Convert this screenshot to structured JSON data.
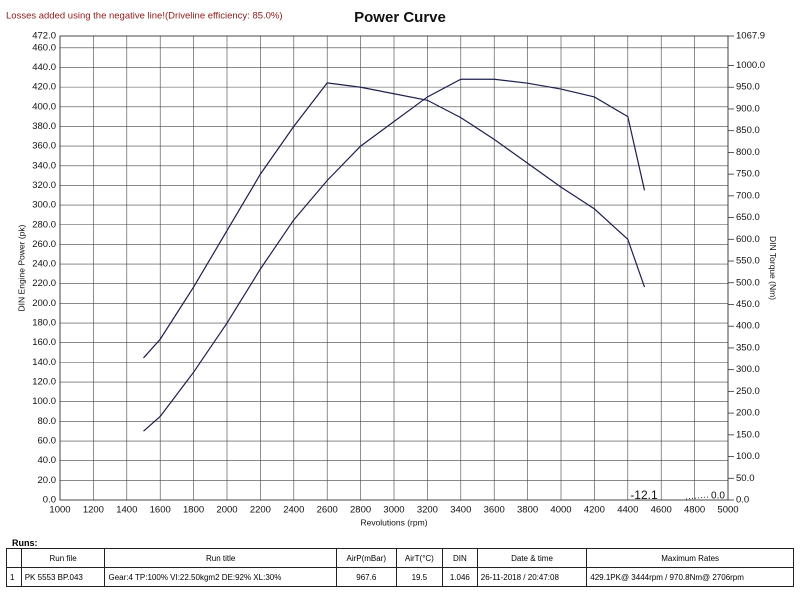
{
  "chart_data": {
    "type": "line",
    "note": "Losses added using the negative line!(Driveline efficiency: 85.0%)",
    "title": "Power Curve",
    "x_label": "Revolutions (rpm)",
    "y_label": "DIN Engine Power (pk)",
    "y2_label": "DIN Torque (Nm)",
    "annotations": [
      "-12.1",
      "0.0"
    ],
    "x": [
      1500,
      1600,
      1800,
      2000,
      2200,
      2400,
      2600,
      2800,
      3000,
      3200,
      3400,
      3600,
      3800,
      4000,
      4200,
      4400,
      4500
    ],
    "series": [
      {
        "name": "DIN Engine Power",
        "color": "#1c1f4e",
        "values": [
          70,
          85,
          130,
          180,
          235,
          285,
          325,
          360,
          385,
          410,
          428,
          428,
          424,
          418,
          410,
          390,
          315
        ]
      },
      {
        "name": "DIN Torque",
        "color": "#1c1f4e",
        "axis": "y2",
        "values": [
          327,
          370,
          490,
          620,
          750,
          860,
          960,
          950,
          935,
          920,
          880,
          830,
          775,
          720,
          670,
          600,
          490
        ]
      }
    ],
    "xlim": [
      1000,
      5000
    ],
    "xticks": [
      1000,
      1200,
      1400,
      1600,
      1800,
      2000,
      2200,
      2400,
      2600,
      2800,
      3000,
      3200,
      3400,
      3600,
      3800,
      4000,
      4200,
      4400,
      4600,
      4800,
      5000
    ],
    "ylim": [
      0,
      472
    ],
    "yticks": [
      {
        "value": 0,
        "label": "0.0"
      },
      {
        "value": 20,
        "label": "20.0"
      },
      {
        "value": 40,
        "label": "40.0"
      },
      {
        "value": 60,
        "label": "60.0"
      },
      {
        "value": 80,
        "label": "80.0"
      },
      {
        "value": 100,
        "label": "100.0"
      },
      {
        "value": 120,
        "label": "120.0"
      },
      {
        "value": 140,
        "label": "140.0"
      },
      {
        "value": 160,
        "label": "160.0"
      },
      {
        "value": 180,
        "label": "180.0"
      },
      {
        "value": 200,
        "label": "200.0"
      },
      {
        "value": 220,
        "label": "220.0"
      },
      {
        "value": 240,
        "label": "240.0"
      },
      {
        "value": 260,
        "label": "260.0"
      },
      {
        "value": 280,
        "label": "280.0"
      },
      {
        "value": 300,
        "label": "300.0"
      },
      {
        "value": 320,
        "label": "320.0"
      },
      {
        "value": 340,
        "label": "340.0"
      },
      {
        "value": 360,
        "label": "360.0"
      },
      {
        "value": 380,
        "label": "380.0"
      },
      {
        "value": 400,
        "label": "400.0"
      },
      {
        "value": 420,
        "label": "420.0"
      },
      {
        "value": 440,
        "label": "440.0"
      },
      {
        "value": 460,
        "label": "460.0"
      },
      {
        "value": 472,
        "label": "472.0"
      }
    ],
    "y2lim": [
      0,
      1067.9
    ],
    "y2ticks": [
      {
        "value": 0,
        "label": "0.0"
      },
      {
        "value": 50,
        "label": "50.0"
      },
      {
        "value": 100,
        "label": "100.0"
      },
      {
        "value": 150,
        "label": "150.0"
      },
      {
        "value": 200,
        "label": "200.0"
      },
      {
        "value": 250,
        "label": "250.0"
      },
      {
        "value": 300,
        "label": "300.0"
      },
      {
        "value": 350,
        "label": "350.0"
      },
      {
        "value": 400,
        "label": "400.0"
      },
      {
        "value": 450,
        "label": "450.0"
      },
      {
        "value": 500,
        "label": "500.0"
      },
      {
        "value": 550,
        "label": "550.0"
      },
      {
        "value": 600,
        "label": "600.0"
      },
      {
        "value": 650,
        "label": "650.0"
      },
      {
        "value": 700,
        "label": "700.0"
      },
      {
        "value": 750,
        "label": "750.0"
      },
      {
        "value": 800,
        "label": "800.0"
      },
      {
        "value": 850,
        "label": "850.0"
      },
      {
        "value": 900,
        "label": "900.0"
      },
      {
        "value": 950,
        "label": "950.0"
      },
      {
        "value": 1000,
        "label": "1000.0"
      },
      1067.9
    ],
    "grid": true
  },
  "table": {
    "title": "Runs:",
    "header": [
      "",
      "Run file",
      "Run title",
      "AirP(mBar)",
      "AirT(°C)",
      "DIN",
      "Date & time",
      "Maximum Rates"
    ],
    "rows": [
      [
        "1",
        "PK 5553 BP.043",
        "Gear:4 TP:100% VI:22.50kgm2 DE:92% XL:30%",
        "967.6",
        "19.5",
        "1.046",
        "26-11-2018 / 20:47:08",
        "429.1PK@ 3444rpm / 970.8Nm@ 2706rpm"
      ]
    ]
  }
}
